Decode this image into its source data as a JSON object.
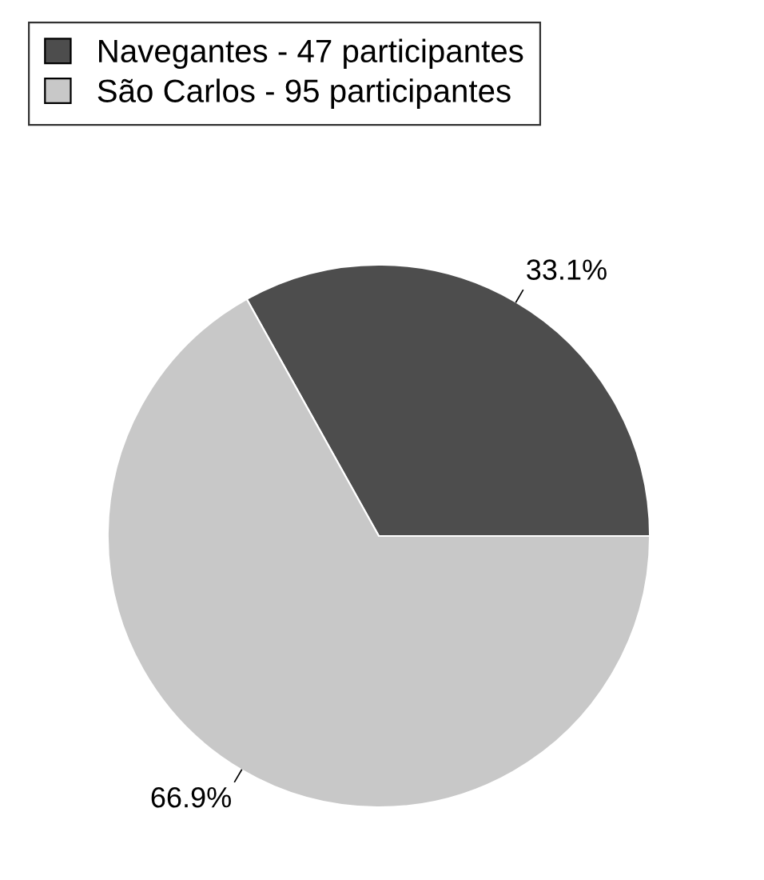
{
  "chart_data": {
    "type": "pie",
    "categories": [
      "Navegantes - 47 participantes",
      "São Carlos - 95 participantes"
    ],
    "values": [
      33.1,
      66.9
    ],
    "colors": [
      "#4d4d4d",
      "#c8c8c8"
    ],
    "value_labels": [
      "33.1%",
      "66.9%"
    ],
    "legend": "top left"
  }
}
